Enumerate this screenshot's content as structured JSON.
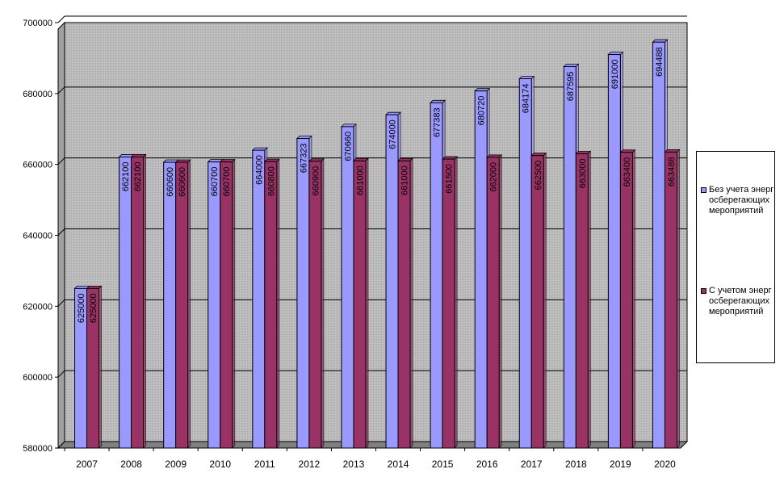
{
  "chart_data": {
    "type": "bar",
    "title": "",
    "xlabel": "",
    "ylabel": "",
    "categories": [
      "2007",
      "2008",
      "2009",
      "2010",
      "2011",
      "2012",
      "2013",
      "2014",
      "2015",
      "2016",
      "2017",
      "2018",
      "2019",
      "2020"
    ],
    "ylim": [
      580000,
      700000
    ],
    "yticks": [
      580000,
      600000,
      620000,
      640000,
      660000,
      680000,
      700000
    ],
    "ytick_labels": [
      "580000",
      "600000",
      "620000",
      "640000",
      "660000",
      "680000",
      "700000"
    ],
    "grid": true,
    "legend_position": "right",
    "series": [
      {
        "name": "Без учета энергосберегающих мероприятий",
        "color": "#9999ff",
        "values": [
          625000,
          662100,
          660600,
          660700,
          664000,
          667323,
          670660,
          674000,
          677383,
          680720,
          684174,
          687595,
          691000,
          694488
        ],
        "labels": [
          "625000",
          "662100",
          "660600",
          "660700",
          "664000",
          "667323",
          "670660",
          "674000",
          "677383",
          "680720",
          "684174",
          "687595",
          "691000",
          "694488"
        ]
      },
      {
        "name": "С учетом энергосберегающих мероприятий",
        "color": "#993366",
        "values": [
          625000,
          662100,
          660600,
          660700,
          660800,
          660900,
          661000,
          661000,
          661500,
          662000,
          662500,
          663000,
          663400,
          663488
        ],
        "labels": [
          "625000",
          "662100",
          "660600",
          "660700",
          "660800",
          "660900",
          "661000",
          "661000",
          "661500",
          "662000",
          "662500",
          "663000",
          "663400",
          "663488"
        ]
      }
    ],
    "plot_background": "#c0c0c0"
  }
}
